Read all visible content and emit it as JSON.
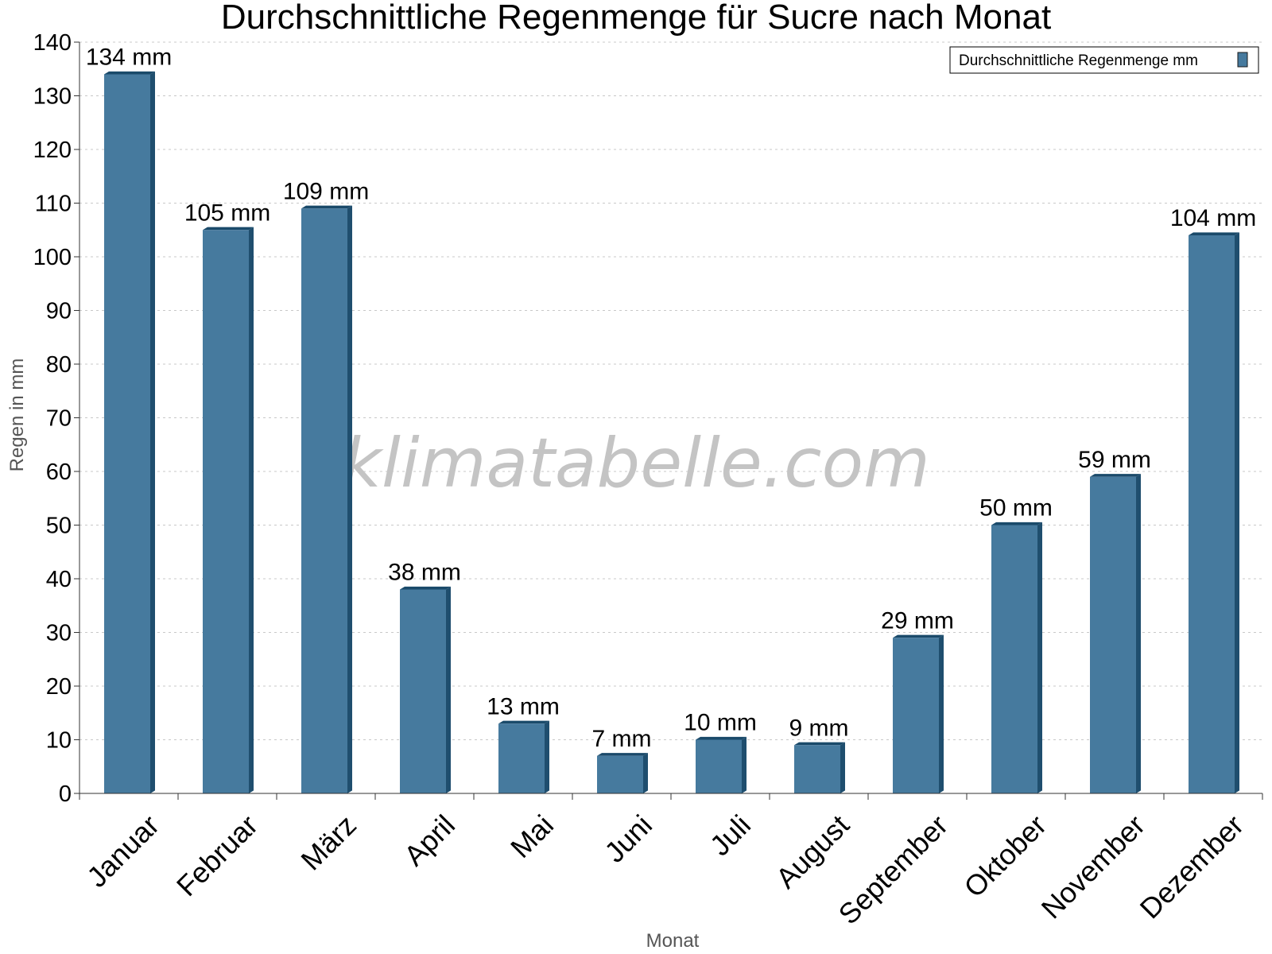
{
  "watermark": "klimatabelle.com",
  "colors": {
    "bar_front": "#467a9e",
    "bar_side": "#1f4e6e",
    "bar_top": "#1a4a6a",
    "grid": "#c8c8c8",
    "axis": "#333333"
  },
  "chart_data": {
    "type": "bar",
    "title": "Durchschnittliche Regenmenge für Sucre nach Monat",
    "xlabel": "Monat",
    "ylabel": "Regen in mm",
    "ylim": [
      0,
      140
    ],
    "ytick_step": 10,
    "grid": true,
    "legend_position": "top-right",
    "categories": [
      "Januar",
      "Februar",
      "März",
      "April",
      "Mai",
      "Juni",
      "Juli",
      "August",
      "September",
      "Oktober",
      "November",
      "Dezember"
    ],
    "series": [
      {
        "name": "Durchschnittliche Regenmenge mm",
        "values": [
          134,
          105,
          109,
          38,
          13,
          7,
          10,
          9,
          29,
          50,
          59,
          104
        ],
        "labels": [
          "134 mm",
          "105 mm",
          "109 mm",
          "38 mm",
          "13 mm",
          "7 mm",
          "10 mm",
          "9 mm",
          "29 mm",
          "50 mm",
          "59 mm",
          "104 mm"
        ]
      }
    ]
  }
}
